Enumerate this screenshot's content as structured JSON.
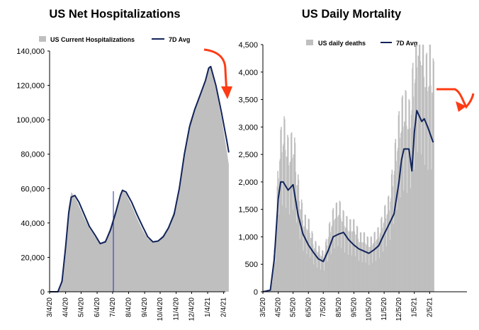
{
  "colors": {
    "area": "#bfbfbf",
    "avg_line": "#12245a",
    "arrow": "#ff3b14",
    "axis": "#000000"
  },
  "chart_data": [
    {
      "type": "area",
      "title": "US Net Hospitalizations",
      "xlabel": "",
      "ylabel": "",
      "ylim": [
        0,
        140000
      ],
      "yticks": [
        "0",
        "20,000",
        "40,000",
        "60,000",
        "80,000",
        "100,000",
        "120,000",
        "140,000"
      ],
      "xticks": [
        "3/4/20",
        "4/4/20",
        "5/4/20",
        "6/4/20",
        "7/4/20",
        "8/4/20",
        "9/4/20",
        "10/4/20",
        "11/4/20",
        "12/4/20",
        "1/4/21",
        "2/4/21"
      ],
      "grid": false,
      "legend_position": "top",
      "annotation": "red arrow pointing down at the recent decline",
      "series": [
        {
          "name": "US Current Hospitalizations",
          "type": "area",
          "x": [
            "3/4/20",
            "3/20/20",
            "3/28/20",
            "4/4/20",
            "4/10/20",
            "4/15/20",
            "4/22/20",
            "4/30/20",
            "5/10/20",
            "5/20/20",
            "5/31/20",
            "6/10/20",
            "6/20/20",
            "6/30/20",
            "7/10/20",
            "7/19/20",
            "7/23/20",
            "7/30/20",
            "8/10/20",
            "8/20/20",
            "8/31/20",
            "9/10/20",
            "9/20/20",
            "9/30/20",
            "10/10/20",
            "10/20/20",
            "10/31/20",
            "11/10/20",
            "11/20/20",
            "11/30/20",
            "12/10/20",
            "12/20/20",
            "12/31/20",
            "1/6/21",
            "1/10/21",
            "1/20/21",
            "1/31/21",
            "2/10/21",
            "2/14/21"
          ],
          "values": [
            0,
            0,
            8000,
            30000,
            50000,
            58000,
            55000,
            50000,
            43000,
            37000,
            32000,
            28000,
            30000,
            38000,
            48000,
            57000,
            59000,
            57000,
            50000,
            43000,
            36000,
            31000,
            29000,
            30000,
            33000,
            38000,
            47000,
            62000,
            82000,
            98000,
            107000,
            115000,
            124000,
            131000,
            130000,
            118000,
            101000,
            82000,
            74000
          ]
        },
        {
          "name": "7D Avg",
          "type": "line",
          "x": [
            "3/4/20",
            "3/20/20",
            "3/28/20",
            "4/4/20",
            "4/10/20",
            "4/15/20",
            "4/22/20",
            "4/30/20",
            "5/10/20",
            "5/20/20",
            "5/31/20",
            "6/10/20",
            "6/20/20",
            "6/30/20",
            "7/10/20",
            "7/19/20",
            "7/23/20",
            "7/30/20",
            "8/10/20",
            "8/20/20",
            "8/31/20",
            "9/10/20",
            "9/20/20",
            "9/30/20",
            "10/10/20",
            "10/20/20",
            "10/31/20",
            "11/10/20",
            "11/20/20",
            "11/30/20",
            "12/10/20",
            "12/20/20",
            "12/31/20",
            "1/6/21",
            "1/10/21",
            "1/20/21",
            "1/31/21",
            "2/10/21",
            "2/14/21"
          ],
          "values": [
            0,
            0,
            6000,
            26000,
            46000,
            55000,
            56000,
            52000,
            45000,
            38000,
            33000,
            28000,
            29000,
            36000,
            46000,
            56000,
            59000,
            58000,
            52000,
            45000,
            38000,
            32000,
            29000,
            29500,
            32000,
            37000,
            45000,
            60000,
            80000,
            96000,
            106000,
            114000,
            123000,
            130000,
            131000,
            120000,
            104000,
            88000,
            81000
          ]
        }
      ]
    },
    {
      "type": "bar",
      "title": "US Daily Mortality",
      "xlabel": "",
      "ylabel": "",
      "ylim": [
        0,
        4500
      ],
      "yticks": [
        "0",
        "500",
        "1,000",
        "1,500",
        "2,000",
        "2,500",
        "3,000",
        "3,500",
        "4,000",
        "4,500"
      ],
      "xticks": [
        "3/5/20",
        "4/5/20",
        "5/5/20",
        "6/5/20",
        "7/5/20",
        "8/5/20",
        "9/5/20",
        "10/5/20",
        "11/5/20",
        "12/5/20",
        "1/5/21",
        "2/5/21"
      ],
      "grid": false,
      "legend_position": "top",
      "annotation": "red arrow curving down at the recent decline",
      "series": [
        {
          "name": "US daily deaths",
          "type": "bar",
          "x": [
            "3/5/20",
            "3/20/20",
            "3/30/20",
            "4/5/20",
            "4/15/20",
            "4/25/20",
            "5/5/20",
            "5/15/20",
            "5/25/20",
            "6/5/20",
            "6/15/20",
            "6/25/20",
            "7/5/20",
            "7/15/20",
            "7/25/20",
            "8/5/20",
            "8/15/20",
            "8/25/20",
            "9/5/20",
            "9/15/20",
            "9/25/20",
            "10/5/20",
            "10/15/20",
            "10/25/20",
            "11/5/20",
            "11/15/20",
            "11/25/20",
            "12/5/20",
            "12/15/20",
            "12/25/20",
            "1/5/21",
            "1/12/21",
            "1/20/21",
            "1/28/21",
            "2/5/21",
            "2/12/21"
          ],
          "values": [
            0,
            40,
            900,
            2300,
            2700,
            2300,
            2500,
            1700,
            1200,
            1100,
            800,
            700,
            600,
            1000,
            1300,
            1400,
            1200,
            1100,
            1100,
            900,
            900,
            800,
            900,
            1000,
            1300,
            1500,
            2200,
            2800,
            3100,
            2900,
            3800,
            4300,
            4100,
            3600,
            3800,
            3500
          ]
        },
        {
          "name": "7D Avg",
          "type": "line",
          "x": [
            "3/5/20",
            "3/20/20",
            "3/28/20",
            "4/5/20",
            "4/10/20",
            "4/15/20",
            "4/25/20",
            "5/5/20",
            "5/15/20",
            "5/25/20",
            "6/5/20",
            "6/15/20",
            "6/25/20",
            "7/5/20",
            "7/15/20",
            "7/25/20",
            "8/5/20",
            "8/15/20",
            "8/25/20",
            "9/5/20",
            "9/15/20",
            "9/25/20",
            "10/5/20",
            "10/15/20",
            "10/25/20",
            "11/5/20",
            "11/15/20",
            "11/25/20",
            "12/5/20",
            "12/10/20",
            "12/15/20",
            "12/25/20",
            "12/31/20",
            "1/5/21",
            "1/10/21",
            "1/15/21",
            "1/20/21",
            "1/25/21",
            "2/1/21",
            "2/5/21",
            "2/12/21"
          ],
          "values": [
            0,
            30,
            600,
            1700,
            2000,
            2000,
            1850,
            1950,
            1400,
            1050,
            850,
            720,
            600,
            550,
            750,
            1000,
            1050,
            1080,
            950,
            850,
            780,
            740,
            700,
            760,
            840,
            1050,
            1230,
            1420,
            2000,
            2400,
            2600,
            2600,
            2200,
            2900,
            3300,
            3200,
            3100,
            3150,
            3000,
            2900,
            2720
          ]
        }
      ]
    }
  ]
}
